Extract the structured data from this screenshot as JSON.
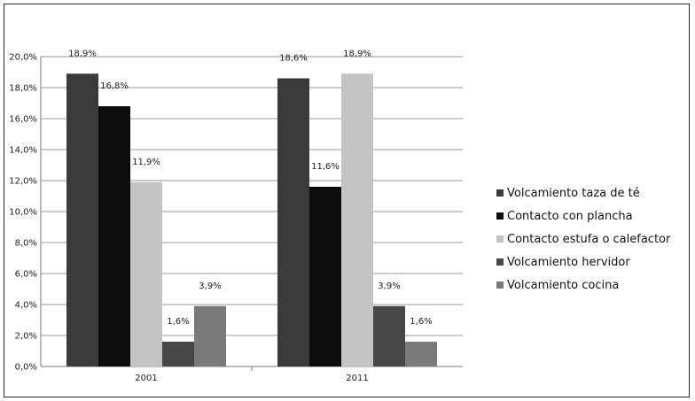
{
  "chart_data": {
    "type": "bar",
    "categories": [
      "2001",
      "2011"
    ],
    "ylim": [
      0,
      20
    ],
    "y_ticks": [
      "0,0%",
      "2,0%",
      "4,0%",
      "6,0%",
      "8,0%",
      "10,0%",
      "12,0%",
      "14,0%",
      "16,0%",
      "18,0%",
      "20,0%"
    ],
    "grid": true,
    "legend_position": "right",
    "series": [
      {
        "name": "Volcamiento taza de té",
        "color": "#3b3b3b",
        "values": [
          18.9,
          18.6
        ],
        "labels": [
          "18,9%",
          "18,6%"
        ]
      },
      {
        "name": "Contacto con plancha",
        "color": "#0d0d0d",
        "values": [
          16.8,
          11.6
        ],
        "labels": [
          "16,8%",
          "11,6%"
        ]
      },
      {
        "name": "Contacto estufa o calefactor",
        "color": "#c4c4c4",
        "values": [
          11.9,
          18.9
        ],
        "labels": [
          "11,9%",
          "18,9%"
        ]
      },
      {
        "name": "Volcamiento hervidor",
        "color": "#474747",
        "values": [
          1.6,
          3.9
        ],
        "labels": [
          "1,6%",
          "3,9%"
        ]
      },
      {
        "name": "Volcamiento cocina",
        "color": "#7a7a7a",
        "values": [
          3.9,
          1.6
        ],
        "labels": [
          "3,9%",
          "1,6%"
        ]
      }
    ]
  }
}
